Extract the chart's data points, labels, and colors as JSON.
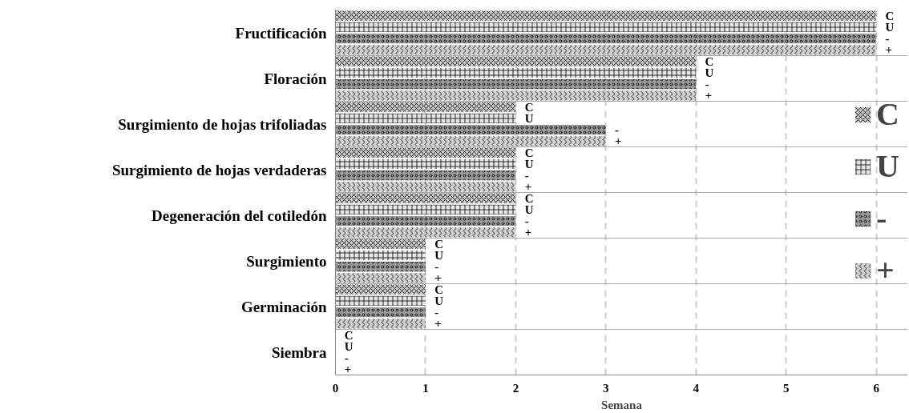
{
  "chart_data": {
    "type": "bar",
    "orientation": "horizontal",
    "xlabel": "Semana",
    "categories": [
      "Fructificación",
      "Floración",
      "Surgimiento de hojas trifoliadas",
      "Surgimiento de hojas verdaderas",
      "Degeneración del cotiledón",
      "Surgimiento",
      "Germinación",
      "Siembra"
    ],
    "series": [
      {
        "name": "C",
        "color": "#c8c8c8",
        "values": [
          6,
          4,
          2,
          2,
          2,
          1,
          1,
          0
        ]
      },
      {
        "name": "U",
        "color": "#e6e6e6",
        "values": [
          6,
          4,
          2,
          2,
          2,
          1,
          1,
          0
        ]
      },
      {
        "name": "-",
        "color": "#9a9a9a",
        "values": [
          6,
          4,
          3,
          2,
          2,
          1,
          1,
          0
        ]
      },
      {
        "name": "+",
        "color": "#d0d0d0",
        "values": [
          6,
          4,
          3,
          2,
          2,
          1,
          1,
          0
        ]
      }
    ],
    "xlim": [
      0,
      6.35
    ],
    "xticks": [
      0,
      1,
      2,
      3,
      4,
      5,
      6
    ],
    "grid": true,
    "legend": "right"
  }
}
